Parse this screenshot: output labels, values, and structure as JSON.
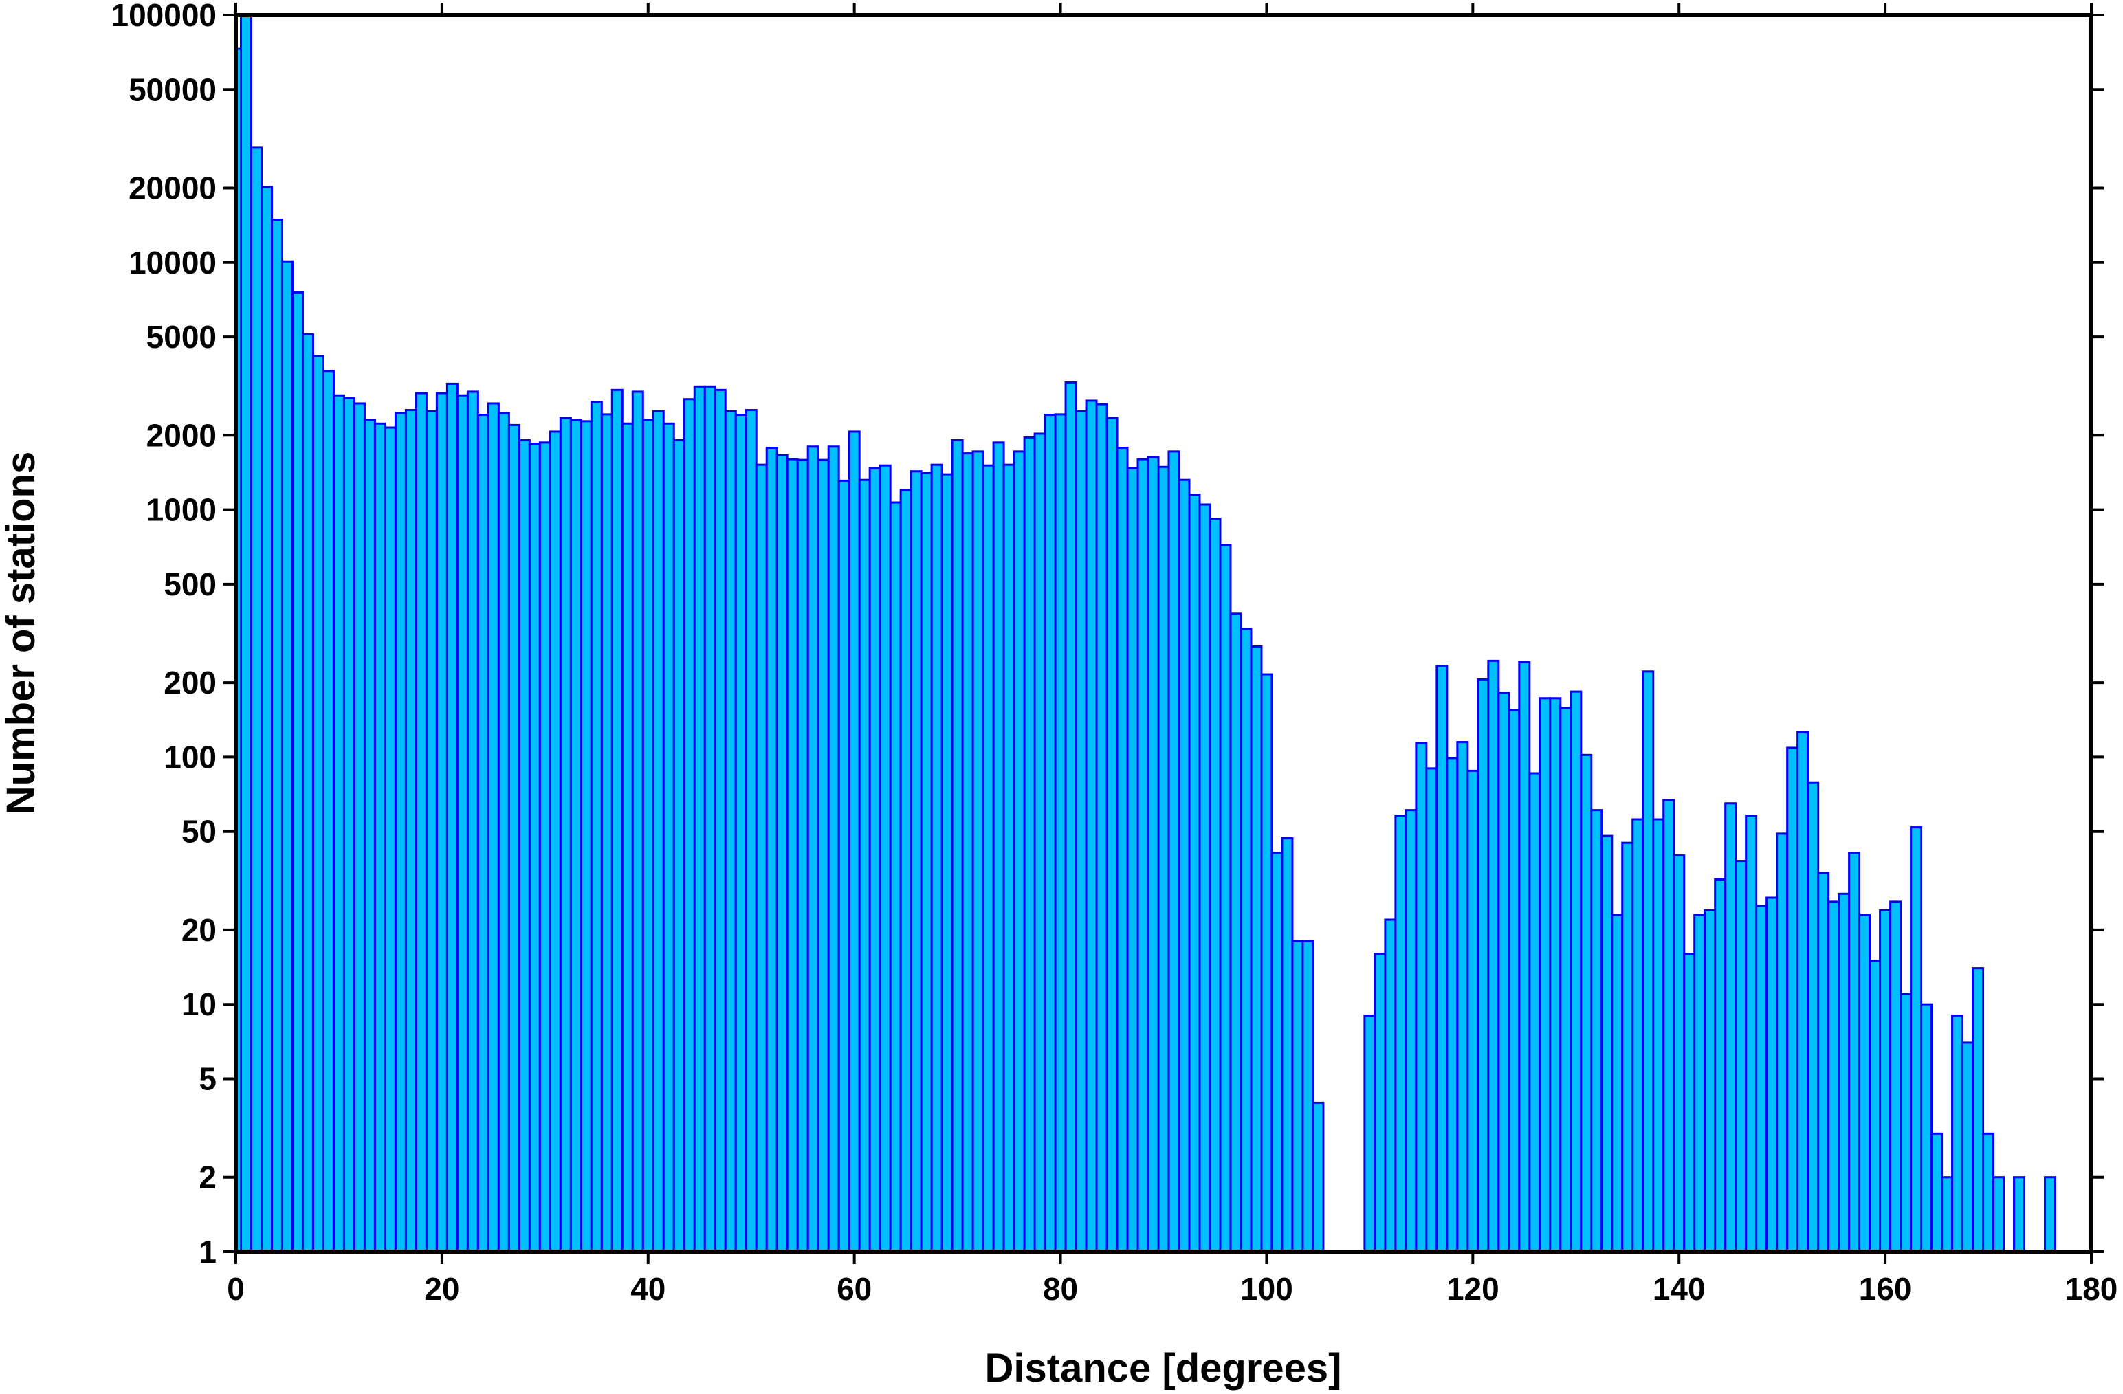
{
  "chart_data": {
    "type": "bar",
    "title": "",
    "xlabel": "Distance [degrees]",
    "ylabel": "Number of stations",
    "xlim": [
      0,
      180
    ],
    "ylim": [
      1,
      100000
    ],
    "yscale": "log",
    "bin_width": 1,
    "grid": false,
    "legend": "none",
    "x_ticks": [
      "0",
      "20",
      "40",
      "60",
      "80",
      "100",
      "120",
      "140",
      "160",
      "180"
    ],
    "y_ticks": [
      "1",
      "2",
      "5",
      "10",
      "20",
      "50",
      "100",
      "200",
      "500",
      "1000",
      "2000",
      "5000",
      "10000",
      "20000",
      "50000",
      "100000"
    ],
    "colors": {
      "bar_fill": "#00bfff",
      "bar_edge": "#0000ff",
      "frame": "#000000"
    },
    "x_centers": [
      0,
      1,
      2,
      3,
      4,
      5,
      6,
      7,
      8,
      9,
      10,
      11,
      12,
      13,
      14,
      15,
      16,
      17,
      18,
      19,
      20,
      21,
      22,
      23,
      24,
      25,
      26,
      27,
      28,
      29,
      30,
      31,
      32,
      33,
      34,
      35,
      36,
      37,
      38,
      39,
      40,
      41,
      42,
      43,
      44,
      45,
      46,
      47,
      48,
      49,
      50,
      51,
      52,
      53,
      54,
      55,
      56,
      57,
      58,
      59,
      60,
      61,
      62,
      63,
      64,
      65,
      66,
      67,
      68,
      69,
      70,
      71,
      72,
      73,
      74,
      75,
      76,
      77,
      78,
      79,
      80,
      81,
      82,
      83,
      84,
      85,
      86,
      87,
      88,
      89,
      90,
      91,
      92,
      93,
      94,
      95,
      96,
      97,
      98,
      99,
      100,
      101,
      102,
      103,
      104,
      105,
      106,
      107,
      108,
      109,
      110,
      111,
      112,
      113,
      114,
      115,
      116,
      117,
      118,
      119,
      120,
      121,
      122,
      123,
      124,
      125,
      126,
      127,
      128,
      129,
      130,
      131,
      132,
      133,
      134,
      135,
      136,
      137,
      138,
      139,
      140,
      141,
      142,
      143,
      144,
      145,
      146,
      147,
      148,
      149,
      150,
      151,
      152,
      153,
      154,
      155,
      156,
      157,
      158,
      159,
      160,
      161,
      162,
      163,
      164,
      165,
      166,
      167,
      168,
      169,
      170,
      171,
      172,
      173,
      174,
      175,
      176
    ],
    "values": [
      73000,
      100000,
      29100,
      20200,
      14900,
      10100,
      7560,
      5120,
      4180,
      3640,
      2900,
      2830,
      2690,
      2310,
      2230,
      2150,
      2460,
      2530,
      2960,
      2500,
      2960,
      3230,
      2900,
      3000,
      2420,
      2690,
      2460,
      2200,
      1910,
      1850,
      1870,
      2070,
      2350,
      2310,
      2280,
      2730,
      2430,
      3050,
      2230,
      3000,
      2310,
      2500,
      2230,
      1910,
      2800,
      3150,
      3150,
      3050,
      2500,
      2420,
      2530,
      1520,
      1780,
      1660,
      1600,
      1590,
      1800,
      1590,
      1800,
      1310,
      2070,
      1320,
      1470,
      1510,
      1070,
      1200,
      1430,
      1410,
      1520,
      1390,
      1910,
      1690,
      1720,
      1510,
      1870,
      1520,
      1720,
      1960,
      2030,
      2420,
      2430,
      3270,
      2500,
      2760,
      2670,
      2350,
      1780,
      1470,
      1600,
      1630,
      1490,
      1720,
      1320,
      1150,
      1050,
      920,
      720,
      380,
      330,
      280,
      216,
      41,
      47,
      18,
      18,
      4,
      0,
      0,
      0,
      0,
      9,
      16,
      22,
      58,
      61,
      114,
      90,
      234,
      99,
      115,
      88,
      206,
      245,
      182,
      155,
      242,
      86,
      173,
      173,
      158,
      184,
      102,
      61,
      48,
      23,
      45,
      56,
      222,
      56,
      67,
      40,
      16,
      23,
      24,
      32,
      65,
      38,
      58,
      25,
      27,
      49,
      109,
      126,
      79,
      34,
      26,
      28,
      41,
      23,
      15,
      24,
      26,
      11,
      52,
      10,
      3,
      2,
      9,
      7,
      14,
      3,
      2,
      0,
      2,
      0,
      0,
      2
    ]
  }
}
